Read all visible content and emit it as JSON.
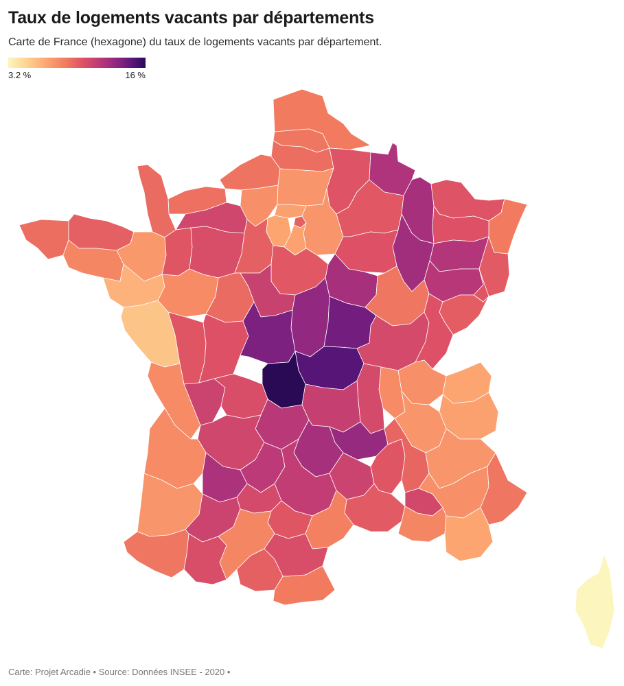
{
  "header": {
    "title": "Taux de logements vacants par départements",
    "subtitle": "Carte de France (hexagone) du taux de logements vacants par département."
  },
  "legend": {
    "min_label": "3.2 %",
    "max_label": "16 %",
    "min_value": 3.2,
    "max_value": 16,
    "colors": [
      "#fcf5bd",
      "#fdd795",
      "#fca571",
      "#f27b5f",
      "#dd5065",
      "#b73779",
      "#8a2581",
      "#5c177c",
      "#2a0a55"
    ]
  },
  "map": {
    "region": "France (hexagone)",
    "departments": [
      {
        "id": "nord",
        "value": 8.0
      },
      {
        "id": "pas-de-calais",
        "value": 8.2
      },
      {
        "id": "somme",
        "value": 8.5
      },
      {
        "id": "aisne",
        "value": 9.5
      },
      {
        "id": "ardennes",
        "value": 11.5
      },
      {
        "id": "seine-maritime",
        "value": 8.3
      },
      {
        "id": "eure",
        "value": 7.2
      },
      {
        "id": "calvados",
        "value": 8.4
      },
      {
        "id": "manche",
        "value": 8.6
      },
      {
        "id": "orne",
        "value": 10.2
      },
      {
        "id": "oise",
        "value": 7.0
      },
      {
        "id": "val-d-oise",
        "value": 6.6
      },
      {
        "id": "yvelines",
        "value": 6.4
      },
      {
        "id": "paris",
        "value": 9.0
      },
      {
        "id": "seine-et-marne",
        "value": 7.0
      },
      {
        "id": "essonne",
        "value": 6.5
      },
      {
        "id": "marne",
        "value": 9.3
      },
      {
        "id": "meuse",
        "value": 11.8
      },
      {
        "id": "moselle",
        "value": 9.5
      },
      {
        "id": "bas-rhin",
        "value": 8.0
      },
      {
        "id": "meurthe-et-moselle",
        "value": 9.6
      },
      {
        "id": "haut-rhin",
        "value": 9.2
      },
      {
        "id": "vosges",
        "value": 11.3
      },
      {
        "id": "haute-marne",
        "value": 12.0
      },
      {
        "id": "aube",
        "value": 9.6
      },
      {
        "id": "haute-saone",
        "value": 11.2
      },
      {
        "id": "territoire-de-belfort",
        "value": 9.4
      },
      {
        "id": "doubs",
        "value": 9.1
      },
      {
        "id": "finistere",
        "value": 8.5
      },
      {
        "id": "cotes-d-armor",
        "value": 9.0
      },
      {
        "id": "morbihan",
        "value": 7.6
      },
      {
        "id": "ille-et-vilaine",
        "value": 6.9
      },
      {
        "id": "mayenne",
        "value": 9.4
      },
      {
        "id": "sarthe",
        "value": 9.8
      },
      {
        "id": "eure-et-loir",
        "value": 9.0
      },
      {
        "id": "loiret",
        "value": 9.3
      },
      {
        "id": "yonne",
        "value": 11.8
      },
      {
        "id": "cote-d-or",
        "value": 8.2
      },
      {
        "id": "loire-atlantique",
        "value": 6.0
      },
      {
        "id": "maine-et-loire",
        "value": 7.4
      },
      {
        "id": "indre-et-loire",
        "value": 8.6
      },
      {
        "id": "loir-et-cher",
        "value": 10.5
      },
      {
        "id": "cher",
        "value": 12.5
      },
      {
        "id": "nievre",
        "value": 13.6
      },
      {
        "id": "saone-et-loire",
        "value": 10.0
      },
      {
        "id": "jura",
        "value": 9.6
      },
      {
        "id": "vendee",
        "value": 5.4
      },
      {
        "id": "deux-sevres",
        "value": 9.4
      },
      {
        "id": "vienne",
        "value": 9.6
      },
      {
        "id": "indre",
        "value": 13.3
      },
      {
        "id": "allier",
        "value": 14.6
      },
      {
        "id": "creuse",
        "value": 16.0
      },
      {
        "id": "ain",
        "value": 7.2
      },
      {
        "id": "haute-savoie",
        "value": 6.4
      },
      {
        "id": "savoie",
        "value": 6.6
      },
      {
        "id": "charente-maritime",
        "value": 7.4
      },
      {
        "id": "charente",
        "value": 10.4
      },
      {
        "id": "haute-vienne",
        "value": 9.8
      },
      {
        "id": "dordogne",
        "value": 10.2
      },
      {
        "id": "correze",
        "value": 11.1
      },
      {
        "id": "puy-de-dome",
        "value": 10.6
      },
      {
        "id": "loire",
        "value": 10.0
      },
      {
        "id": "rhone",
        "value": 7.4
      },
      {
        "id": "isere",
        "value": 7.0
      },
      {
        "id": "haute-loire",
        "value": 12.4
      },
      {
        "id": "cantal",
        "value": 11.8
      },
      {
        "id": "gironde",
        "value": 7.4
      },
      {
        "id": "lot-et-garonne",
        "value": 11.6
      },
      {
        "id": "lot",
        "value": 11.0
      },
      {
        "id": "lozere",
        "value": 10.4
      },
      {
        "id": "ardeche",
        "value": 9.4
      },
      {
        "id": "drome",
        "value": 8.8
      },
      {
        "id": "hautes-alpes",
        "value": 7.0
      },
      {
        "id": "landes",
        "value": 7.0
      },
      {
        "id": "tarn-et-garonne",
        "value": 10.0
      },
      {
        "id": "aveyron",
        "value": 10.8
      },
      {
        "id": "gard",
        "value": 9.2
      },
      {
        "id": "vaucluse",
        "value": 10.1
      },
      {
        "id": "alpes-de-haute-provence",
        "value": 7.2
      },
      {
        "id": "alpes-maritimes",
        "value": 8.2
      },
      {
        "id": "var",
        "value": 6.4
      },
      {
        "id": "bouches-du-rhone",
        "value": 7.6
      },
      {
        "id": "pyrenees-atlantiques",
        "value": 8.2
      },
      {
        "id": "gers",
        "value": 10.4
      },
      {
        "id": "haute-garonne",
        "value": 7.6
      },
      {
        "id": "tarn",
        "value": 9.4
      },
      {
        "id": "herault",
        "value": 7.8
      },
      {
        "id": "hautes-pyrenees",
        "value": 9.8
      },
      {
        "id": "ariege",
        "value": 9.0
      },
      {
        "id": "aude",
        "value": 9.8
      },
      {
        "id": "pyrenees-orientales",
        "value": 8.0
      },
      {
        "id": "corse",
        "value": 3.2
      }
    ]
  },
  "footer": {
    "credit": "Carte: Projet Arcadie • Source: Données INSEE - 2020 •"
  }
}
